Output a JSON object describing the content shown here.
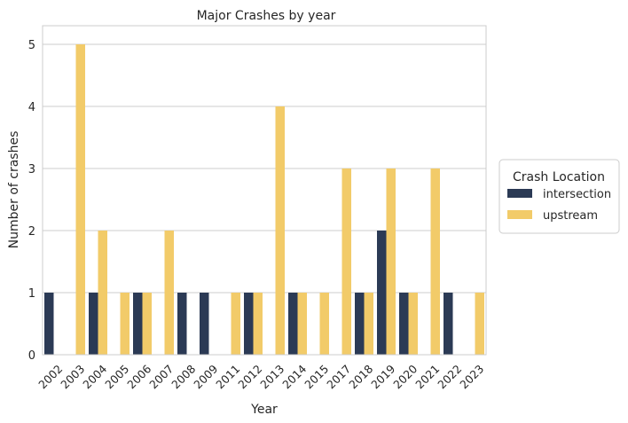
{
  "chart_data": {
    "type": "bar",
    "title": "Major Crashes by year",
    "xlabel": "Year",
    "ylabel": "Number of crashes",
    "categories": [
      "2002",
      "2003",
      "2004",
      "2005",
      "2006",
      "2007",
      "2008",
      "2009",
      "2011",
      "2012",
      "2013",
      "2014",
      "2015",
      "2017",
      "2018",
      "2019",
      "2020",
      "2021",
      "2022",
      "2023"
    ],
    "series": [
      {
        "name": "intersection",
        "color": "#2b3a55",
        "values": [
          1,
          0,
          1,
          0,
          1,
          0,
          1,
          1,
          0,
          1,
          0,
          1,
          0,
          0,
          1,
          2,
          1,
          0,
          1,
          0
        ]
      },
      {
        "name": "upstream",
        "color": "#f2cb69",
        "values": [
          0,
          5,
          2,
          1,
          1,
          2,
          0,
          0,
          1,
          1,
          4,
          1,
          1,
          3,
          1,
          3,
          1,
          3,
          0,
          1
        ]
      }
    ],
    "ylim": [
      0,
      5.3
    ],
    "yticks": [
      0,
      1,
      2,
      3,
      4,
      5
    ],
    "grid": "horizontal",
    "legend": {
      "title": "Crash Location",
      "placement": "outside-right"
    }
  }
}
